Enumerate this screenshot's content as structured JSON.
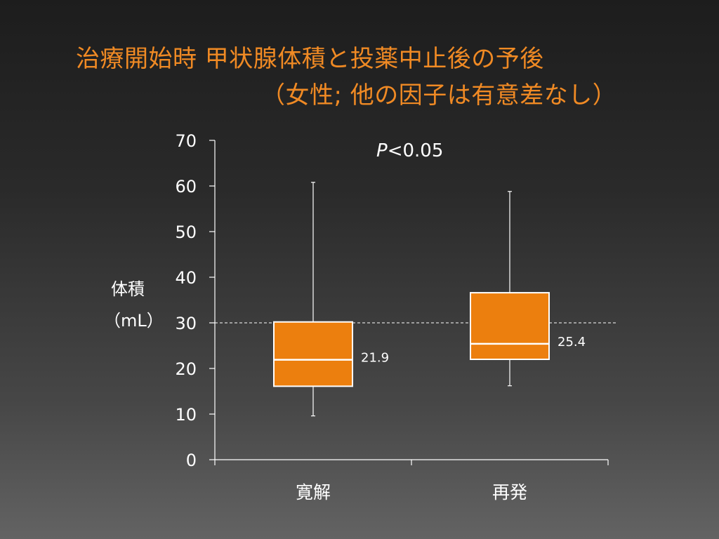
{
  "title": {
    "line1": "治療開始時 甲状腺体積と投薬中止後の予後",
    "line2": "（女性; 他の因子は有意差なし）"
  },
  "ylabel": {
    "line1": "体積",
    "line2": "（mL）"
  },
  "colors": {
    "title": "#f08a24",
    "box_fill": "#ec7f0e",
    "box_stroke": "#ffffff",
    "text": "#ffffff"
  },
  "chart_data": {
    "type": "boxplot",
    "ylim": [
      0,
      70
    ],
    "yticks": [
      "0",
      "10",
      "20",
      "30",
      "40",
      "50",
      "60",
      "70"
    ],
    "categories": [
      "寛解",
      "再発"
    ],
    "boxes": [
      {
        "category": "寛解",
        "min": 9.6,
        "q1": 16.1,
        "median": 21.9,
        "q3": 30.2,
        "max": 60.8,
        "label": "21.9"
      },
      {
        "category": "再発",
        "min": 16.2,
        "q1": 22.0,
        "median": 25.4,
        "q3": 36.6,
        "max": 58.8,
        "label": "25.4"
      }
    ],
    "reference_line": {
      "y": 30,
      "style": "dashed"
    },
    "annotation": {
      "italic": "P",
      "text": "<0.05"
    }
  }
}
